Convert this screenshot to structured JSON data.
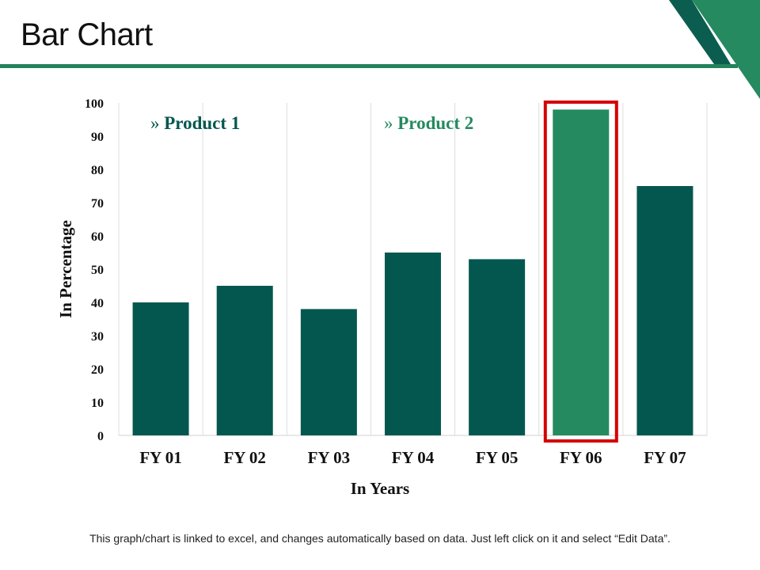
{
  "slide": {
    "title": "Bar Chart",
    "footer": "This graph/chart is linked to excel, and changes automatically based on data. Just left click on it and select “Edit Data”."
  },
  "colors": {
    "product1": "#04574f",
    "product2": "#258a5f",
    "highlight": "#d40000",
    "accent_rule": "#24825c",
    "corner_dark": "#0b5e4f",
    "corner_light": "#258a5f"
  },
  "chart_data": {
    "type": "bar",
    "categories": [
      "FY 01",
      "FY 02",
      "FY 03",
      "FY 04",
      "FY 05",
      "FY 06",
      "FY 07"
    ],
    "values": [
      40,
      45,
      38,
      55,
      53,
      98,
      75
    ],
    "series_of_bar": [
      1,
      1,
      1,
      1,
      1,
      2,
      1
    ],
    "legend": [
      {
        "marker": "»",
        "name": "Product 1"
      },
      {
        "marker": "»",
        "name": "Product 2"
      }
    ],
    "highlighted_category": "FY 06",
    "xlabel": "In Years",
    "ylabel": "In Percentage",
    "ylim": [
      0,
      100
    ],
    "yticks": [
      0,
      10,
      20,
      30,
      40,
      50,
      60,
      70,
      80,
      90,
      100
    ],
    "grid": "vertical"
  }
}
